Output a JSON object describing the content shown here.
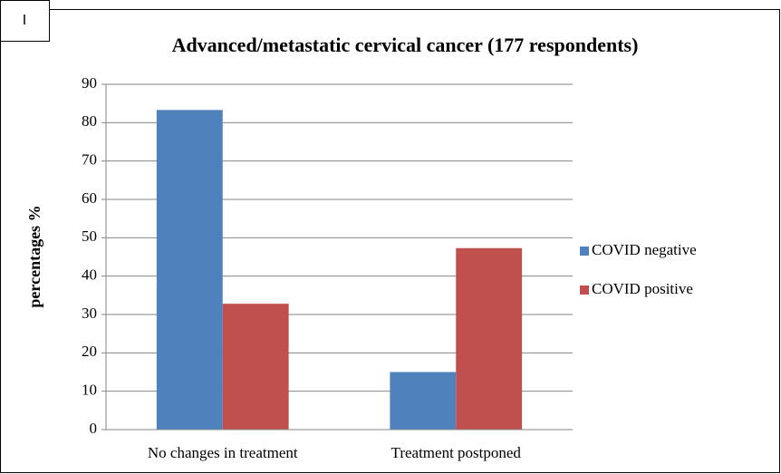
{
  "chart_data": {
    "type": "bar",
    "panel_label": "I",
    "title": "Advanced/metastatic cervical cancer (177 respondents)",
    "y_label": "percentages %",
    "categories": [
      "No changes in treatment",
      "Treatment postponed"
    ],
    "series": [
      {
        "name": "COVID negative",
        "color": "#4f81bd",
        "values": [
          83.3,
          15
        ]
      },
      {
        "name": "COVID positive",
        "color": "#c0504d",
        "values": [
          32.8,
          47.3
        ]
      }
    ],
    "ylim": [
      0,
      90
    ],
    "yticks": [
      0,
      10,
      20,
      30,
      40,
      50,
      60,
      70,
      80,
      90
    ],
    "grid": true,
    "legend": "right"
  }
}
